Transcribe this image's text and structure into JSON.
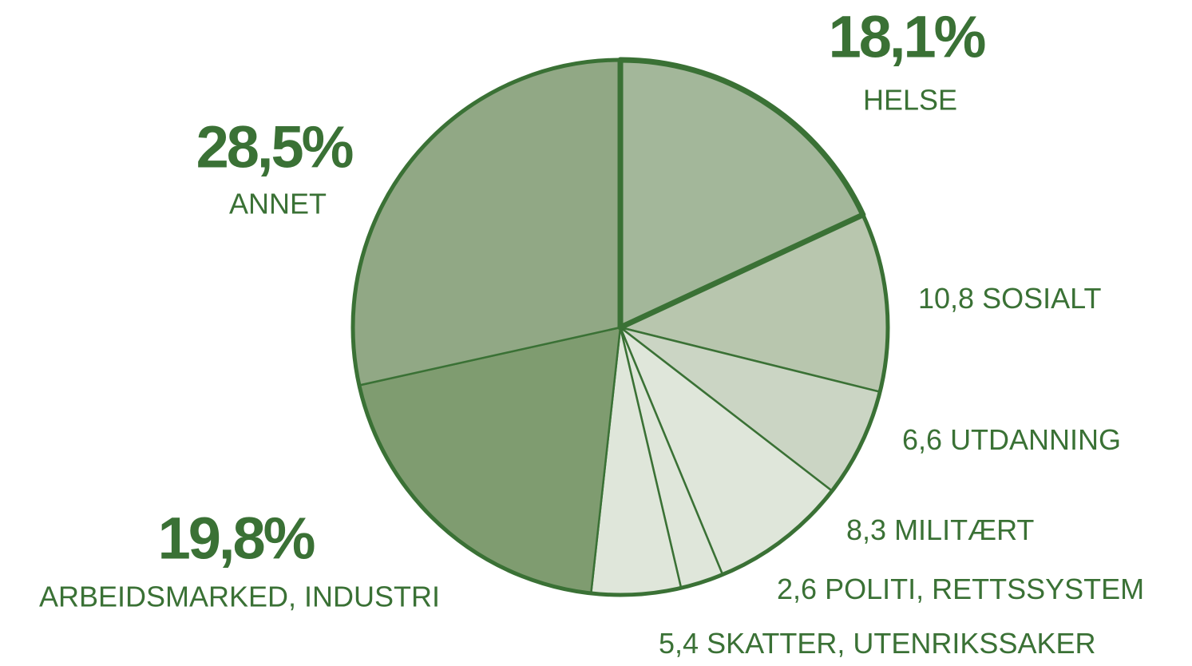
{
  "chart_data": {
    "type": "pie",
    "categories": [
      "HELSE",
      "SOSIALT",
      "UTDANNING",
      "MILITÆRT",
      "POLITI, RETTSSYSTEM",
      "SKATTER, UTENRIKSSAKER",
      "ARBEIDSMARKED, INDUSTRI",
      "ANNET"
    ],
    "values": [
      18.1,
      10.8,
      6.6,
      8.3,
      2.6,
      5.4,
      19.8,
      28.5
    ],
    "value_labels": [
      "18,1%",
      "10,8",
      "6,6",
      "8,3",
      "2,6",
      "5,4",
      "19,8%",
      "28,5%"
    ],
    "colors": [
      "#a3b79a",
      "#b8c6ae",
      "#cbd5c4",
      "#dfe6da",
      "#dfe6da",
      "#dfe6da",
      "#7f9c70",
      "#91a885"
    ],
    "edge_color": "#3a7135"
  }
}
